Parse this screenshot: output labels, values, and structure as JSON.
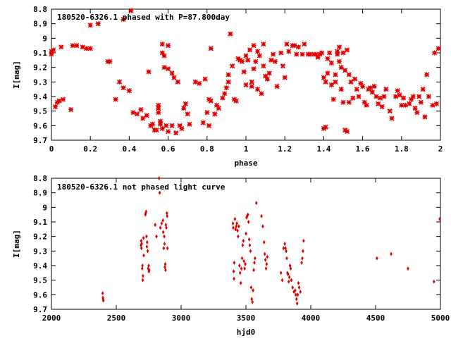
{
  "chart_data": [
    {
      "type": "scatter",
      "title": "180520-6326.1 phased with P=87.800day",
      "xlabel": "phase",
      "ylabel": "I[mag]",
      "xlim": [
        0,
        2
      ],
      "ylim": [
        8.8,
        9.7
      ],
      "y_inverted": true,
      "x_ticks": [
        0,
        0.2,
        0.4,
        0.6,
        0.8,
        1,
        1.2,
        1.4,
        1.6,
        1.8,
        2
      ],
      "y_ticks": [
        8.8,
        8.9,
        9,
        9.1,
        9.2,
        9.3,
        9.4,
        9.5,
        9.6,
        9.7
      ],
      "marker": "star",
      "color": "#e00000",
      "grid": false,
      "points": [
        [
          0.0,
          9.11
        ],
        [
          0.0,
          9.09
        ],
        [
          0.01,
          9.08
        ],
        [
          0.02,
          9.47
        ],
        [
          0.03,
          9.44
        ],
        [
          0.04,
          9.43
        ],
        [
          0.05,
          9.06
        ],
        [
          0.06,
          9.42
        ],
        [
          0.1,
          9.49
        ],
        [
          0.11,
          9.05
        ],
        [
          0.13,
          9.05
        ],
        [
          0.16,
          9.06
        ],
        [
          0.18,
          9.07
        ],
        [
          0.2,
          9.07
        ],
        [
          0.2,
          8.91
        ],
        [
          0.24,
          8.9
        ],
        [
          0.29,
          9.16
        ],
        [
          0.3,
          9.16
        ],
        [
          0.33,
          9.42
        ],
        [
          0.35,
          9.3
        ],
        [
          0.37,
          9.34
        ],
        [
          0.37,
          8.87
        ],
        [
          0.4,
          9.36
        ],
        [
          0.41,
          8.81
        ],
        [
          0.42,
          9.51
        ],
        [
          0.44,
          9.52
        ],
        [
          0.46,
          9.49
        ],
        [
          0.47,
          9.55
        ],
        [
          0.49,
          9.53
        ],
        [
          0.5,
          9.23
        ],
        [
          0.51,
          9.6
        ],
        [
          0.52,
          9.59
        ],
        [
          0.53,
          9.63
        ],
        [
          0.54,
          9.63
        ],
        [
          0.55,
          9.46
        ],
        [
          0.55,
          9.48
        ],
        [
          0.55,
          9.51
        ],
        [
          0.56,
          9.57
        ],
        [
          0.56,
          9.59
        ],
        [
          0.57,
          9.62
        ],
        [
          0.57,
          9.04
        ],
        [
          0.57,
          9.1
        ],
        [
          0.58,
          9.12
        ],
        [
          0.58,
          9.2
        ],
        [
          0.59,
          9.6
        ],
        [
          0.6,
          9.64
        ],
        [
          0.6,
          9.21
        ],
        [
          0.6,
          9.05
        ],
        [
          0.62,
          9.24
        ],
        [
          0.62,
          9.6
        ],
        [
          0.63,
          9.27
        ],
        [
          0.64,
          9.65
        ],
        [
          0.65,
          9.3
        ],
        [
          0.66,
          9.6
        ],
        [
          0.67,
          9.62
        ],
        [
          0.68,
          9.48
        ],
        [
          0.69,
          9.45
        ],
        [
          0.7,
          9.52
        ],
        [
          0.71,
          9.59
        ],
        [
          0.74,
          9.3
        ],
        [
          0.76,
          9.31
        ],
        [
          0.78,
          9.58
        ],
        [
          0.79,
          9.28
        ],
        [
          0.8,
          9.51
        ],
        [
          0.81,
          9.6
        ],
        [
          0.81,
          9.42
        ],
        [
          0.82,
          9.43
        ],
        [
          0.82,
          9.07
        ],
        [
          0.84,
          9.52
        ],
        [
          0.85,
          9.46
        ],
        [
          0.86,
          9.48
        ],
        [
          0.88,
          9.41
        ],
        [
          0.89,
          9.38
        ],
        [
          0.9,
          9.34
        ],
        [
          0.91,
          9.3
        ],
        [
          0.91,
          9.25
        ],
        [
          0.92,
          8.97
        ],
        [
          0.93,
          9.19
        ],
        [
          0.94,
          9.42
        ],
        [
          0.95,
          9.43
        ],
        [
          0.96,
          9.14
        ],
        [
          0.97,
          9.15
        ],
        [
          0.98,
          9.16
        ],
        [
          0.99,
          9.23
        ],
        [
          1.0,
          9.32
        ],
        [
          1.0,
          9.12
        ],
        [
          1.01,
          9.15
        ],
        [
          1.02,
          9.08
        ],
        [
          1.03,
          9.3
        ],
        [
          1.03,
          9.33
        ],
        [
          1.04,
          9.21
        ],
        [
          1.04,
          9.05
        ],
        [
          1.05,
          9.16
        ],
        [
          1.06,
          9.35
        ],
        [
          1.06,
          9.09
        ],
        [
          1.07,
          9.12
        ],
        [
          1.08,
          9.38
        ],
        [
          1.09,
          9.19
        ],
        [
          1.09,
          9.04
        ],
        [
          1.1,
          9.26
        ],
        [
          1.11,
          9.28
        ],
        [
          1.12,
          9.24
        ],
        [
          1.13,
          9.15
        ],
        [
          1.14,
          9.11
        ],
        [
          1.15,
          9.16
        ],
        [
          1.16,
          9.33
        ],
        [
          1.18,
          9.1
        ],
        [
          1.19,
          9.19
        ],
        [
          1.2,
          9.27
        ],
        [
          1.21,
          9.04
        ],
        [
          1.22,
          9.09
        ],
        [
          1.24,
          9.05
        ],
        [
          1.25,
          9.05
        ],
        [
          1.26,
          9.11
        ],
        [
          1.27,
          9.06
        ],
        [
          1.29,
          9.11
        ],
        [
          1.3,
          9.04
        ],
        [
          1.32,
          9.11
        ],
        [
          1.33,
          9.11
        ],
        [
          1.35,
          9.11
        ],
        [
          1.36,
          9.11
        ],
        [
          1.37,
          9.13
        ],
        [
          1.38,
          9.11
        ],
        [
          1.39,
          9.1
        ],
        [
          1.4,
          9.62
        ],
        [
          1.4,
          9.27
        ],
        [
          1.41,
          9.61
        ],
        [
          1.41,
          9.3
        ],
        [
          1.42,
          9.24
        ],
        [
          1.42,
          9.14
        ],
        [
          1.43,
          9.1
        ],
        [
          1.44,
          9.17
        ],
        [
          1.44,
          9.32
        ],
        [
          1.45,
          9.42
        ],
        [
          1.46,
          9.25
        ],
        [
          1.46,
          9.3
        ],
        [
          1.47,
          9.11
        ],
        [
          1.47,
          9.09
        ],
        [
          1.48,
          9.06
        ],
        [
          1.48,
          9.16
        ],
        [
          1.49,
          9.2
        ],
        [
          1.49,
          9.35
        ],
        [
          1.5,
          9.44
        ],
        [
          1.5,
          9.1
        ],
        [
          1.51,
          9.63
        ],
        [
          1.51,
          9.22
        ],
        [
          1.52,
          9.64
        ],
        [
          1.52,
          9.08
        ],
        [
          1.53,
          9.25
        ],
        [
          1.53,
          9.44
        ],
        [
          1.54,
          9.3
        ],
        [
          1.55,
          9.41
        ],
        [
          1.56,
          9.28
        ],
        [
          1.57,
          9.35
        ],
        [
          1.58,
          9.4
        ],
        [
          1.59,
          9.31
        ],
        [
          1.6,
          9.33
        ],
        [
          1.61,
          9.44
        ],
        [
          1.62,
          9.46
        ],
        [
          1.63,
          9.35
        ],
        [
          1.64,
          9.34
        ],
        [
          1.65,
          9.37
        ],
        [
          1.66,
          9.33
        ],
        [
          1.67,
          9.4
        ],
        [
          1.68,
          9.45
        ],
        [
          1.69,
          9.41
        ],
        [
          1.7,
          9.47
        ],
        [
          1.71,
          9.4
        ],
        [
          1.72,
          9.35
        ],
        [
          1.74,
          9.5
        ],
        [
          1.75,
          9.55
        ],
        [
          1.77,
          9.4
        ],
        [
          1.78,
          9.36
        ],
        [
          1.79,
          9.39
        ],
        [
          1.8,
          9.46
        ],
        [
          1.81,
          9.41
        ],
        [
          1.82,
          9.46
        ],
        [
          1.84,
          9.45
        ],
        [
          1.85,
          9.42
        ],
        [
          1.86,
          9.4
        ],
        [
          1.87,
          9.48
        ],
        [
          1.88,
          9.51
        ],
        [
          1.89,
          9.4
        ],
        [
          1.9,
          9.44
        ],
        [
          1.91,
          9.35
        ],
        [
          1.92,
          9.54
        ],
        [
          1.93,
          9.25
        ],
        [
          1.94,
          9.4
        ],
        [
          1.96,
          9.46
        ],
        [
          1.97,
          9.1
        ],
        [
          1.98,
          9.45
        ],
        [
          1.99,
          9.07
        ]
      ]
    },
    {
      "type": "scatter",
      "title": "180520-6326.1 not phased light curve",
      "xlabel": "hjd0",
      "ylabel": "I[mag]",
      "xlim": [
        2000,
        5000
      ],
      "ylim": [
        8.8,
        9.7
      ],
      "y_inverted": true,
      "x_ticks": [
        2000,
        2500,
        3000,
        3500,
        4000,
        4500,
        5000
      ],
      "y_ticks": [
        8.8,
        8.9,
        9,
        9.1,
        9.2,
        9.3,
        9.4,
        9.5,
        9.6,
        9.7
      ],
      "marker": "diamond",
      "color": "#e00000",
      "grid": false,
      "points": [
        [
          2395,
          9.59
        ],
        [
          2397,
          9.62
        ],
        [
          2399,
          9.63
        ],
        [
          2401,
          9.64
        ],
        [
          2690,
          9.26
        ],
        [
          2692,
          9.23
        ],
        [
          2694,
          9.28
        ],
        [
          2696,
          9.25
        ],
        [
          2700,
          9.42
        ],
        [
          2702,
          9.4
        ],
        [
          2704,
          9.5
        ],
        [
          2706,
          9.47
        ],
        [
          2710,
          9.21
        ],
        [
          2712,
          9.33
        ],
        [
          2725,
          9.05
        ],
        [
          2727,
          9.04
        ],
        [
          2730,
          9.03
        ],
        [
          2733,
          9.2
        ],
        [
          2736,
          9.27
        ],
        [
          2738,
          9.24
        ],
        [
          2742,
          9.3
        ],
        [
          2746,
          9.42
        ],
        [
          2750,
          9.4
        ],
        [
          2752,
          9.44
        ],
        [
          2754,
          9.43
        ],
        [
          2800,
          9.12
        ],
        [
          2810,
          9.2
        ],
        [
          2830,
          8.8
        ],
        [
          2835,
          8.9
        ],
        [
          2840,
          9.14
        ],
        [
          2850,
          9.11
        ],
        [
          2860,
          9.09
        ],
        [
          2862,
          9.17
        ],
        [
          2866,
          9.28
        ],
        [
          2870,
          9.2
        ],
        [
          2872,
          9.25
        ],
        [
          2875,
          9.41
        ],
        [
          2878,
          9.39
        ],
        [
          2880,
          9.43
        ],
        [
          2882,
          9.12
        ],
        [
          2886,
          9.14
        ],
        [
          2890,
          9.04
        ],
        [
          2892,
          9.06
        ],
        [
          2895,
          9.28
        ],
        [
          3400,
          9.11
        ],
        [
          3402,
          9.14
        ],
        [
          3405,
          9.44
        ],
        [
          3408,
          9.49
        ],
        [
          3410,
          9.38
        ],
        [
          3415,
          9.08
        ],
        [
          3420,
          9.15
        ],
        [
          3425,
          9.13
        ],
        [
          3430,
          9.11
        ],
        [
          3435,
          9.16
        ],
        [
          3440,
          9.2
        ],
        [
          3445,
          9.13
        ],
        [
          3450,
          9.4
        ],
        [
          3455,
          9.45
        ],
        [
          3460,
          9.52
        ],
        [
          3465,
          9.42
        ],
        [
          3470,
          9.35
        ],
        [
          3475,
          9.26
        ],
        [
          3480,
          9.23
        ],
        [
          3485,
          9.37
        ],
        [
          3490,
          9.42
        ],
        [
          3495,
          9.39
        ],
        [
          3500,
          9.18
        ],
        [
          3505,
          9.07
        ],
        [
          3510,
          9.06
        ],
        [
          3515,
          9.05
        ],
        [
          3520,
          9.1
        ],
        [
          3525,
          9.22
        ],
        [
          3530,
          9.26
        ],
        [
          3535,
          9.3
        ],
        [
          3540,
          9.55
        ],
        [
          3545,
          9.63
        ],
        [
          3550,
          9.65
        ],
        [
          3555,
          9.57
        ],
        [
          3560,
          9.43
        ],
        [
          3565,
          9.38
        ],
        [
          3570,
          9.35
        ],
        [
          3580,
          8.97
        ],
        [
          3620,
          9.06
        ],
        [
          3630,
          9.13
        ],
        [
          3640,
          9.24
        ],
        [
          3645,
          9.32
        ],
        [
          3650,
          9.36
        ],
        [
          3655,
          9.42
        ],
        [
          3660,
          9.39
        ],
        [
          3665,
          9.34
        ],
        [
          3770,
          9.45
        ],
        [
          3780,
          9.5
        ],
        [
          3790,
          9.28
        ],
        [
          3800,
          9.25
        ],
        [
          3805,
          9.28
        ],
        [
          3810,
          9.3
        ],
        [
          3815,
          9.35
        ],
        [
          3820,
          9.45
        ],
        [
          3825,
          9.46
        ],
        [
          3830,
          9.51
        ],
        [
          3835,
          9.48
        ],
        [
          3840,
          9.4
        ],
        [
          3845,
          9.42
        ],
        [
          3850,
          9.5
        ],
        [
          3860,
          9.55
        ],
        [
          3870,
          9.58
        ],
        [
          3880,
          9.57
        ],
        [
          3885,
          9.6
        ],
        [
          3890,
          9.63
        ],
        [
          3895,
          9.66
        ],
        [
          3900,
          9.6
        ],
        [
          3905,
          9.52
        ],
        [
          3910,
          9.55
        ],
        [
          3920,
          9.58
        ],
        [
          3930,
          9.38
        ],
        [
          3935,
          9.35
        ],
        [
          3940,
          9.3
        ],
        [
          3945,
          9.23
        ],
        [
          4510,
          9.35
        ],
        [
          4620,
          9.32
        ],
        [
          4750,
          9.42
        ],
        [
          4950,
          9.51
        ],
        [
          4995,
          9.08
        ]
      ]
    }
  ]
}
